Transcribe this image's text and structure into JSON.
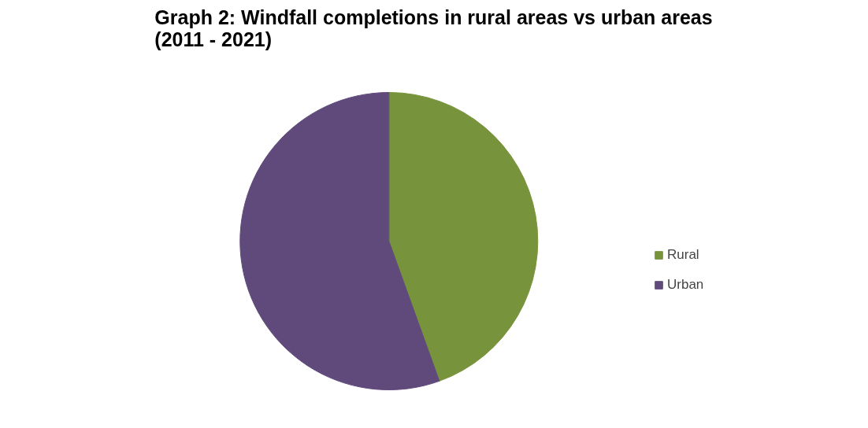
{
  "chart_data": {
    "type": "pie",
    "title": "Graph 2: Windfall completions in rural areas vs urban areas (2011 - 2021)",
    "categories": [
      "Rural",
      "Urban"
    ],
    "values": [
      44.5,
      55.5
    ],
    "colors": [
      "#77933c",
      "#604a7b"
    ],
    "legend": "right"
  }
}
